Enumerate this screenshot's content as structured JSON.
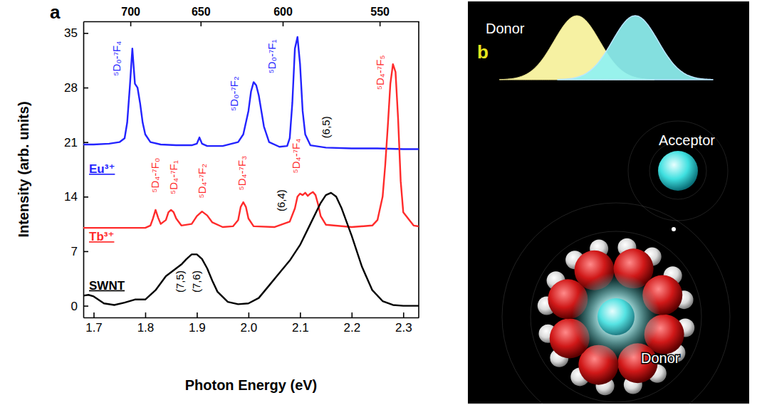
{
  "chart_data": {
    "type": "line",
    "panel_label": "a",
    "x_label": "Photon Energy (eV)",
    "y_label": "Intensity (arb. units)",
    "xlim": [
      1.68,
      2.33
    ],
    "ylim": [
      -1.5,
      36.5
    ],
    "xticks": [
      1.7,
      1.8,
      1.9,
      {
        "value": 2,
        "label": "2.0"
      },
      2.1,
      2.2,
      2.3
    ],
    "yticks": [
      0,
      7,
      14,
      21,
      28,
      35
    ],
    "x2ticks": [
      {
        "value": 1.7712,
        "label": "700"
      },
      {
        "value": 1.9074,
        "label": "650"
      },
      {
        "value": 2.0664,
        "label": "600"
      },
      {
        "value": 2.2543,
        "label": "550"
      }
    ],
    "series": [
      {
        "name": "Eu³⁺",
        "color": "#2323ff",
        "x": [
          1.67,
          1.7,
          1.73,
          1.75,
          1.76,
          1.765,
          1.77,
          1.775,
          1.78,
          1.785,
          1.79,
          1.795,
          1.8,
          1.81,
          1.83,
          1.86,
          1.89,
          1.9,
          1.905,
          1.91,
          1.92,
          1.95,
          1.98,
          1.99,
          2.0,
          2.005,
          2.01,
          2.015,
          2.02,
          2.025,
          2.03,
          2.04,
          2.06,
          2.075,
          2.08,
          2.085,
          2.09,
          2.095,
          2.1,
          2.105,
          2.11,
          2.12,
          2.15,
          2.2,
          2.25,
          2.3,
          2.35
        ],
        "values": [
          20.7,
          20.7,
          20.8,
          21.0,
          21.5,
          23.5,
          28,
          33,
          28.5,
          28,
          26,
          23.5,
          22,
          21,
          20.7,
          20.6,
          20.6,
          20.8,
          21.6,
          20.8,
          20.5,
          20.5,
          21,
          22,
          25,
          27.5,
          28.7,
          28.3,
          27,
          25,
          23,
          21,
          20.4,
          20.5,
          21.5,
          26,
          33,
          34.5,
          31,
          25,
          22,
          20.6,
          20.3,
          20.2,
          20.2,
          20.1,
          20.1
        ]
      },
      {
        "name": "Tb³⁺",
        "color": "#ff2b2b",
        "x": [
          1.67,
          1.8,
          1.81,
          1.815,
          1.82,
          1.825,
          1.83,
          1.84,
          1.845,
          1.85,
          1.855,
          1.86,
          1.87,
          1.89,
          1.9,
          1.91,
          1.92,
          1.93,
          1.95,
          1.97,
          1.98,
          1.985,
          1.99,
          1.995,
          2.0,
          2.01,
          2.05,
          2.08,
          2.09,
          2.095,
          2.1,
          2.105,
          2.11,
          2.115,
          2.12,
          2.125,
          2.13,
          2.135,
          2.14,
          2.15,
          2.2,
          2.24,
          2.25,
          2.26,
          2.265,
          2.27,
          2.275,
          2.28,
          2.285,
          2.29,
          2.295,
          2.3,
          2.32,
          2.35
        ],
        "values": [
          10,
          10,
          10.3,
          11.2,
          12.3,
          11.3,
          10.5,
          11,
          12,
          12.3,
          12,
          11.2,
          10.3,
          10.5,
          11.5,
          12.1,
          11.6,
          10.7,
          10.1,
          10.2,
          11,
          12.7,
          13.3,
          12.7,
          11.2,
          10.2,
          10.1,
          10.8,
          12.5,
          14,
          14.4,
          14.2,
          14.5,
          14.1,
          14.4,
          14.6,
          14.2,
          13,
          11.5,
          10.4,
          10.1,
          10.3,
          11,
          14,
          18,
          23,
          28.5,
          31,
          30,
          24,
          16,
          12,
          10.3,
          10
        ]
      },
      {
        "name": "SWNT",
        "color": "#000000",
        "x": [
          1.67,
          1.68,
          1.69,
          1.7,
          1.72,
          1.74,
          1.76,
          1.78,
          1.8,
          1.82,
          1.84,
          1.86,
          1.87,
          1.88,
          1.89,
          1.9,
          1.91,
          1.92,
          1.93,
          1.94,
          1.96,
          1.98,
          2.0,
          2.02,
          2.04,
          2.06,
          2.08,
          2.1,
          2.12,
          2.14,
          2.15,
          2.16,
          2.17,
          2.18,
          2.2,
          2.22,
          2.24,
          2.26,
          2.28,
          2.3,
          2.35
        ],
        "values": [
          1.0,
          1.3,
          1.4,
          1.2,
          0.3,
          0.1,
          0.4,
          0.8,
          0.8,
          2.0,
          3.8,
          4.8,
          5.3,
          6.0,
          6.6,
          6.6,
          6.0,
          4.8,
          3.2,
          1.8,
          0.5,
          0.2,
          0.3,
          1.0,
          2.6,
          4.2,
          5.8,
          7.8,
          10.5,
          13.2,
          14.2,
          14.5,
          14.0,
          12.6,
          9.0,
          5.0,
          2.0,
          0.6,
          0.1,
          0.0,
          0.0
        ]
      }
    ],
    "annotations": [
      {
        "text": "⁵D₀-⁷F₄",
        "x": 1.752,
        "y": 29.5,
        "color": "#2323ff"
      },
      {
        "text": "⁵D₀-⁷F₂",
        "x": 1.98,
        "y": 25,
        "color": "#2323ff"
      },
      {
        "text": "⁵D₀-⁷F₁",
        "x": 2.052,
        "y": 29.8,
        "color": "#2323ff"
      },
      {
        "text": "⁵D₄-⁷F₀",
        "x": 1.826,
        "y": 14.5,
        "color": "#ff2b2b"
      },
      {
        "text": "⁵D₄-⁷F₁",
        "x": 1.862,
        "y": 14.3,
        "color": "#ff2b2b"
      },
      {
        "text": "⁵D₄-⁷F₂",
        "x": 1.918,
        "y": 13.8,
        "color": "#ff2b2b"
      },
      {
        "text": "⁵D₄-⁷F₃",
        "x": 1.995,
        "y": 14.8,
        "color": "#ff2b2b"
      },
      {
        "text": "⁵D₄-⁷F₄",
        "x": 2.1,
        "y": 17,
        "color": "#ff2b2b"
      },
      {
        "text": "⁵D₄-⁷F₅",
        "x": 2.262,
        "y": 27.7,
        "color": "#ff2b2b"
      },
      {
        "text": "(7,5)",
        "x": 1.875,
        "y": 1.7,
        "color": "#000000"
      },
      {
        "text": "(7,6)",
        "x": 1.907,
        "y": 1.7,
        "color": "#000000"
      },
      {
        "text": "(6,4)",
        "x": 2.07,
        "y": 12.1,
        "color": "#000000"
      },
      {
        "text": "(6,5)",
        "x": 2.158,
        "y": 21.5,
        "color": "#000000"
      }
    ]
  },
  "diagram": {
    "panel_label": "b",
    "spectrum_label": "Donor",
    "acceptor_label": "Acceptor",
    "donor_label": "Donor"
  }
}
